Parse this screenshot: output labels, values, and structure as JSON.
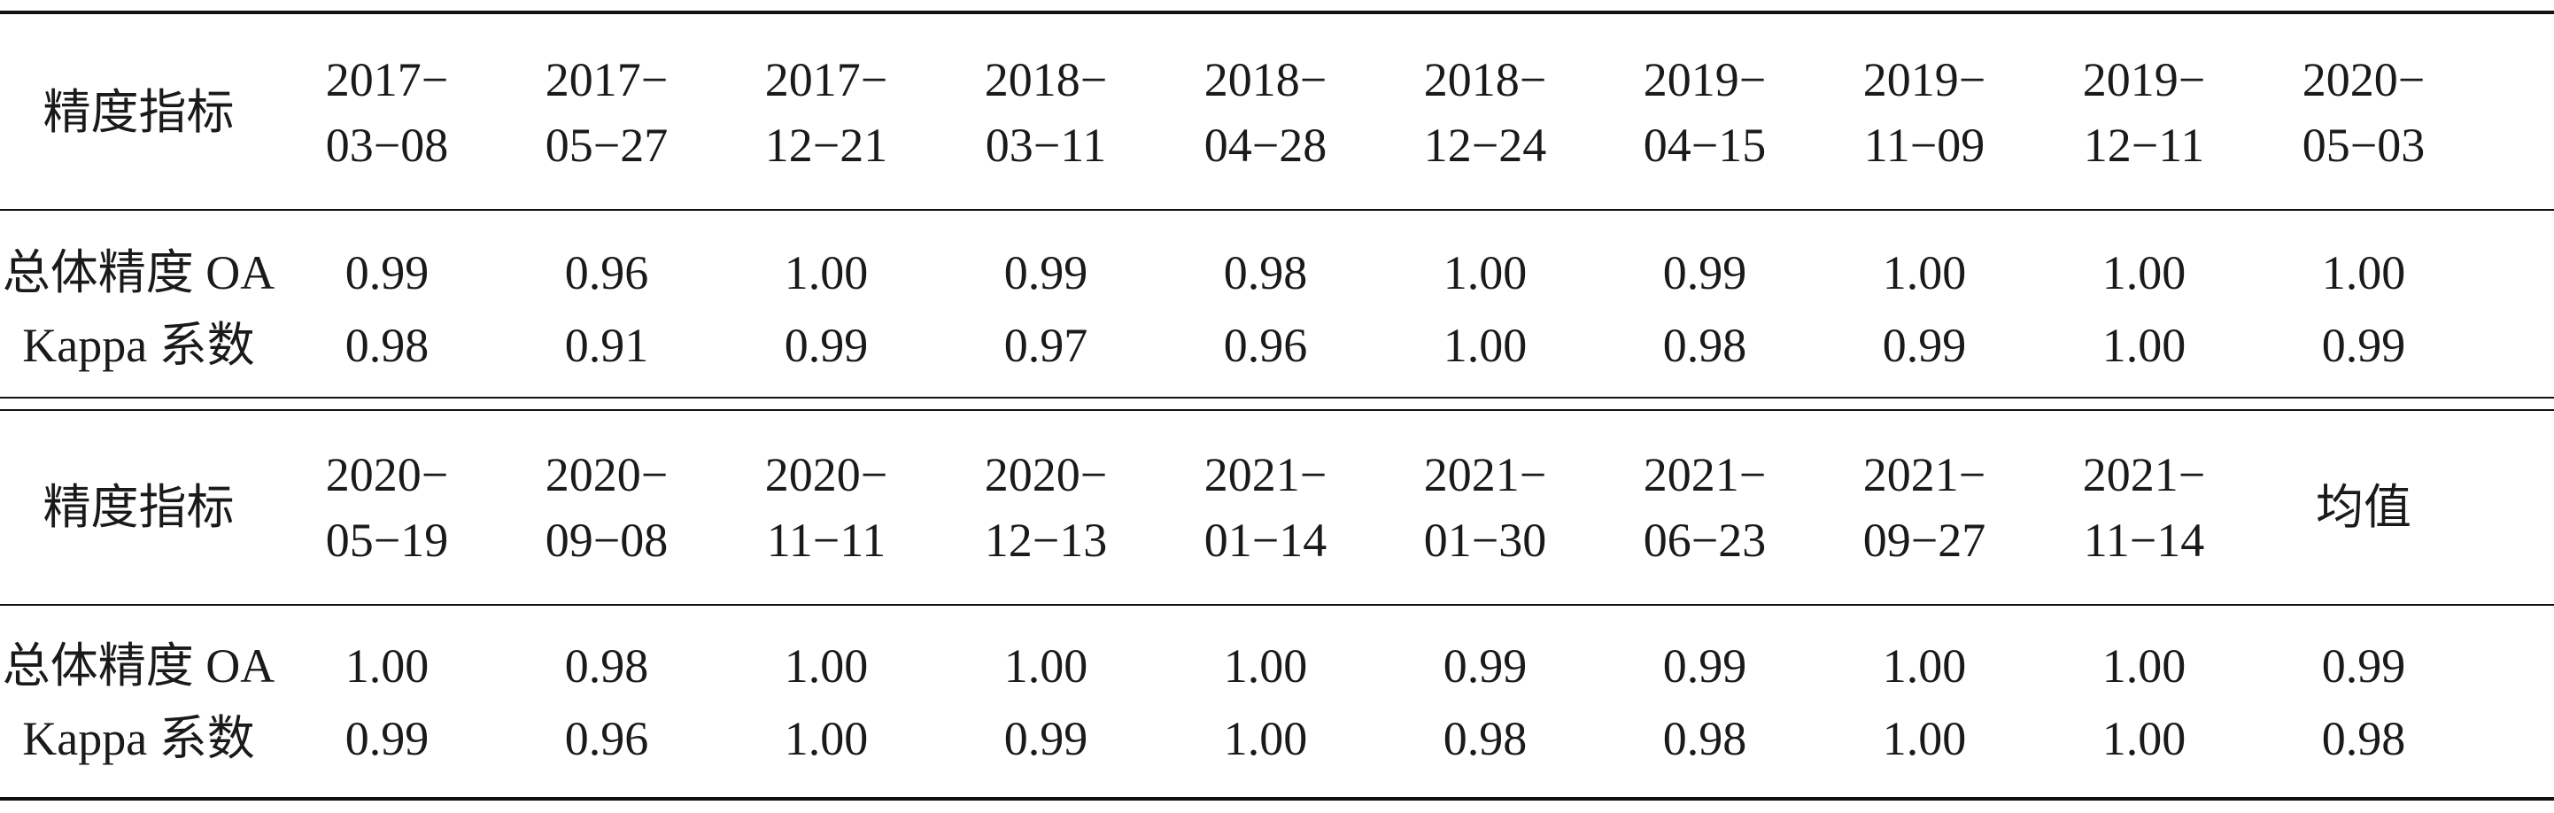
{
  "tables": [
    {
      "header_label": "精度指标",
      "columns": [
        {
          "line1": "2017−",
          "line2": "03−08"
        },
        {
          "line1": "2017−",
          "line2": "05−27"
        },
        {
          "line1": "2017−",
          "line2": "12−21"
        },
        {
          "line1": "2018−",
          "line2": "03−11"
        },
        {
          "line1": "2018−",
          "line2": "04−28"
        },
        {
          "line1": "2018−",
          "line2": "12−24"
        },
        {
          "line1": "2019−",
          "line2": "04−15"
        },
        {
          "line1": "2019−",
          "line2": "11−09"
        },
        {
          "line1": "2019−",
          "line2": "12−11"
        },
        {
          "line1": "2020−",
          "line2": "05−03"
        }
      ],
      "rows": [
        {
          "label": "总体精度 OA",
          "values": [
            "0.99",
            "0.96",
            "1.00",
            "0.99",
            "0.98",
            "1.00",
            "0.99",
            "1.00",
            "1.00",
            "1.00"
          ]
        },
        {
          "label": "Kappa 系数",
          "values": [
            "0.98",
            "0.91",
            "0.99",
            "0.97",
            "0.96",
            "1.00",
            "0.98",
            "0.99",
            "1.00",
            "0.99"
          ]
        }
      ]
    },
    {
      "header_label": "精度指标",
      "columns": [
        {
          "line1": "2020−",
          "line2": "05−19"
        },
        {
          "line1": "2020−",
          "line2": "09−08"
        },
        {
          "line1": "2020−",
          "line2": "11−11"
        },
        {
          "line1": "2020−",
          "line2": "12−13"
        },
        {
          "line1": "2021−",
          "line2": "01−14"
        },
        {
          "line1": "2021−",
          "line2": "01−30"
        },
        {
          "line1": "2021−",
          "line2": "06−23"
        },
        {
          "line1": "2021−",
          "line2": "09−27"
        },
        {
          "line1": "2021−",
          "line2": "11−14"
        },
        {
          "line1": "均值",
          "line2": ""
        }
      ],
      "rows": [
        {
          "label": "总体精度 OA",
          "values": [
            "1.00",
            "0.98",
            "1.00",
            "1.00",
            "1.00",
            "0.99",
            "0.99",
            "1.00",
            "1.00",
            "0.99"
          ]
        },
        {
          "label": "Kappa 系数",
          "values": [
            "0.99",
            "0.96",
            "1.00",
            "0.99",
            "1.00",
            "0.98",
            "0.98",
            "1.00",
            "1.00",
            "0.98"
          ]
        }
      ]
    }
  ]
}
